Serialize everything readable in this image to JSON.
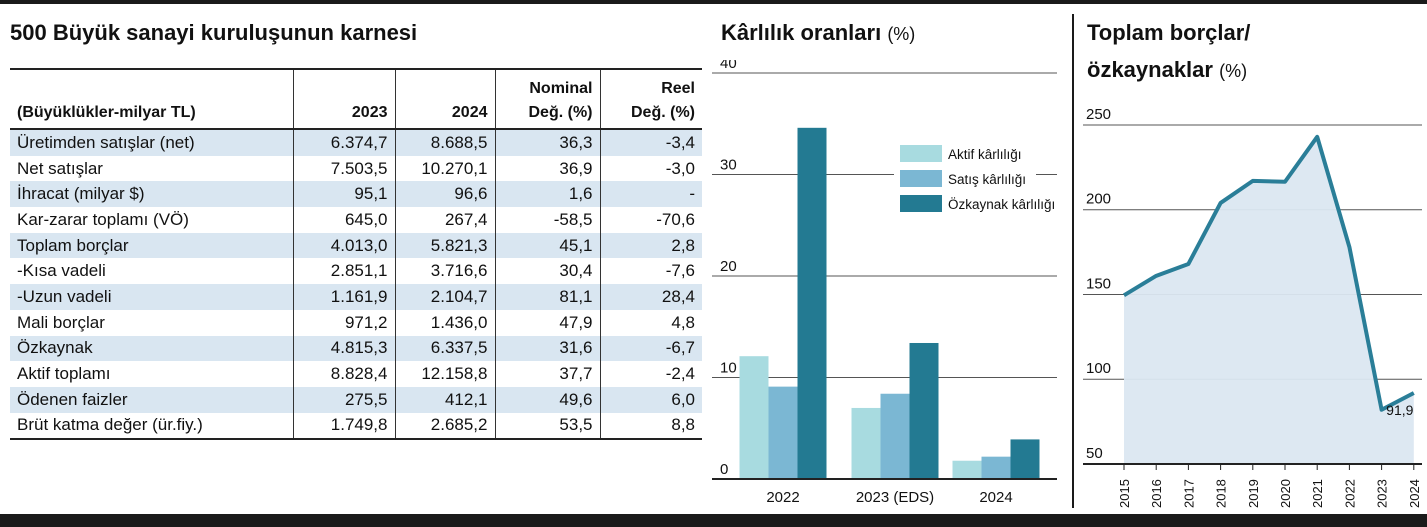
{
  "table": {
    "title": "500 Büyük sanayi kuruluşunun karnesi",
    "header_row1": [
      "",
      "",
      "",
      "Nominal",
      "Reel"
    ],
    "header_row2": [
      "(Büyüklükler-milyar TL)",
      "2023",
      "2024",
      "Değ. (%)",
      "Değ. (%)"
    ],
    "rows": [
      [
        "Üretimden satışlar (net)",
        "6.374,7",
        "8.688,5",
        "36,3",
        "-3,4"
      ],
      [
        "Net satışlar",
        "7.503,5",
        "10.270,1",
        "36,9",
        "-3,0"
      ],
      [
        "İhracat (milyar $)",
        "95,1",
        "96,6",
        "1,6",
        "-"
      ],
      [
        "Kar-zarar toplamı (VÖ)",
        "645,0",
        "267,4",
        "-58,5",
        "-70,6"
      ],
      [
        "Toplam borçlar",
        "4.013,0",
        "5.821,3",
        "45,1",
        "2,8"
      ],
      [
        "-Kısa vadeli",
        "2.851,1",
        "3.716,6",
        "30,4",
        "-7,6"
      ],
      [
        "-Uzun vadeli",
        "1.161,9",
        "2.104,7",
        "81,1",
        "28,4"
      ],
      [
        "Mali borçlar",
        "971,2",
        "1.436,0",
        "47,9",
        "4,8"
      ],
      [
        "Özkaynak",
        "4.815,3",
        "6.337,5",
        "31,6",
        "-6,7"
      ],
      [
        "Aktif toplamı",
        "8.828,4",
        "12.158,8",
        "37,7",
        "-2,4"
      ],
      [
        "Ödenen faizler",
        "275,5",
        "412,1",
        "49,6",
        "6,0"
      ],
      [
        "Brüt katma değer (ür.fiy.)",
        "1.749,8",
        "2.685,2",
        "53,5",
        "8,8"
      ]
    ]
  },
  "colors": {
    "aktif": "#a8dbe0",
    "satis": "#7bb7d3",
    "ozkaynak": "#237a92",
    "line": "#2a7e98",
    "area": "#dbe7f1",
    "row_shade": "#d9e6f1"
  },
  "chart_data": [
    {
      "type": "bar",
      "title": "Kârlılık oranları",
      "unit": "(%)",
      "categories": [
        "2022",
        "2023 (EDS)",
        "2024"
      ],
      "series": [
        {
          "name": "Aktif kârlılığı",
          "values": [
            12.1,
            7.0,
            1.8
          ]
        },
        {
          "name": "Satış kârlılığı",
          "values": [
            9.1,
            8.4,
            2.2
          ]
        },
        {
          "name": "Özkaynak kârlılığı",
          "values": [
            34.6,
            13.4,
            3.9
          ]
        }
      ],
      "ylim": [
        0,
        40
      ],
      "yticks": [
        0,
        10,
        20,
        30,
        40
      ],
      "grid": true,
      "legend": "right"
    },
    {
      "type": "area",
      "title_line1": "Toplam borçlar/",
      "title_line2": "özkaynaklar",
      "unit": "(%)",
      "x": [
        "2015",
        "2016",
        "2017",
        "2018",
        "2019",
        "2020",
        "2021",
        "2022",
        "2023",
        "2024"
      ],
      "values": [
        149.5,
        161,
        168,
        204,
        217,
        216.5,
        243,
        178,
        82,
        91.9
      ],
      "ylim": [
        50,
        260
      ],
      "yticks": [
        50,
        100,
        150,
        200,
        250
      ],
      "annotation": "91,9",
      "grid": true
    }
  ]
}
